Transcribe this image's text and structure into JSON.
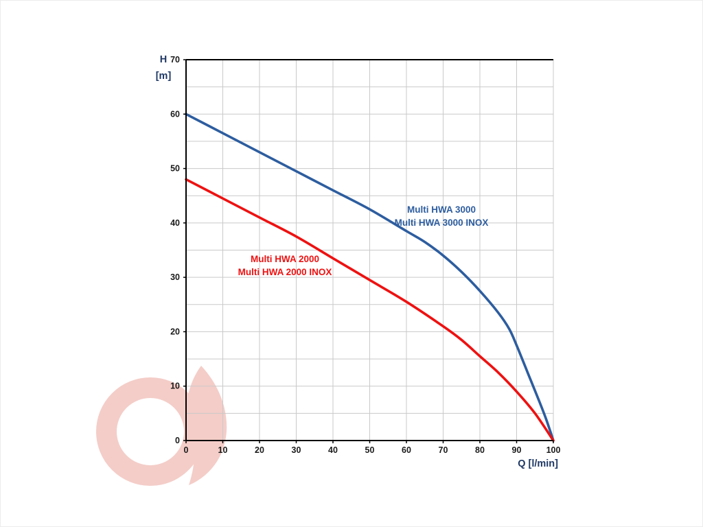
{
  "page": {
    "background": "#ffffff",
    "border_color": "#ececec"
  },
  "watermark": {
    "name": "brand-logo-watermark",
    "primary_color": "#f2c1bb"
  },
  "chart_data": {
    "type": "line",
    "title": "",
    "xlabel": "Q [l/min]",
    "ylabel": "H [m]",
    "ylabel_lines": [
      "H",
      "[m]"
    ],
    "xlim": [
      0,
      100
    ],
    "ylim": [
      0,
      70
    ],
    "x_ticks": [
      0,
      10,
      20,
      30,
      40,
      50,
      60,
      70,
      80,
      90,
      100
    ],
    "y_ticks": [
      0,
      10,
      20,
      30,
      40,
      50,
      60,
      70
    ],
    "grid": {
      "visible": true,
      "x_step": 10,
      "y_step": 5,
      "color": "#c9c9c9"
    },
    "axis_color": "#000000",
    "tick_label_color": "#1a1a1a",
    "axis_title_color": "#1f3864",
    "legend_position": "labels-on-chart",
    "series": [
      {
        "name": "Multi HWA 3000",
        "label_lines": [
          "Multi HWA 3000",
          "Multi HWA 3000 INOX"
        ],
        "color": "#2d5d9f",
        "points": [
          [
            0,
            60
          ],
          [
            10,
            56.5
          ],
          [
            20,
            53
          ],
          [
            30,
            49.5
          ],
          [
            40,
            46
          ],
          [
            50,
            42.5
          ],
          [
            60,
            38.5
          ],
          [
            65,
            36.5
          ],
          [
            70,
            34
          ],
          [
            75,
            31
          ],
          [
            80,
            27.5
          ],
          [
            85,
            23.5
          ],
          [
            88,
            20.5
          ],
          [
            90,
            17.5
          ],
          [
            93,
            12.5
          ],
          [
            96,
            7.5
          ],
          [
            98,
            4
          ],
          [
            100,
            0
          ]
        ]
      },
      {
        "name": "Multi HWA 2000",
        "label_lines": [
          "Multi HWA 2000",
          "Multi HWA 2000 INOX"
        ],
        "color": "#ee1111",
        "points": [
          [
            0,
            48
          ],
          [
            10,
            44.5
          ],
          [
            20,
            41
          ],
          [
            30,
            37.5
          ],
          [
            40,
            33.5
          ],
          [
            50,
            29.5
          ],
          [
            60,
            25.5
          ],
          [
            70,
            21
          ],
          [
            75,
            18.5
          ],
          [
            80,
            15.5
          ],
          [
            85,
            12.5
          ],
          [
            90,
            9
          ],
          [
            95,
            5
          ],
          [
            100,
            0
          ]
        ]
      }
    ]
  }
}
